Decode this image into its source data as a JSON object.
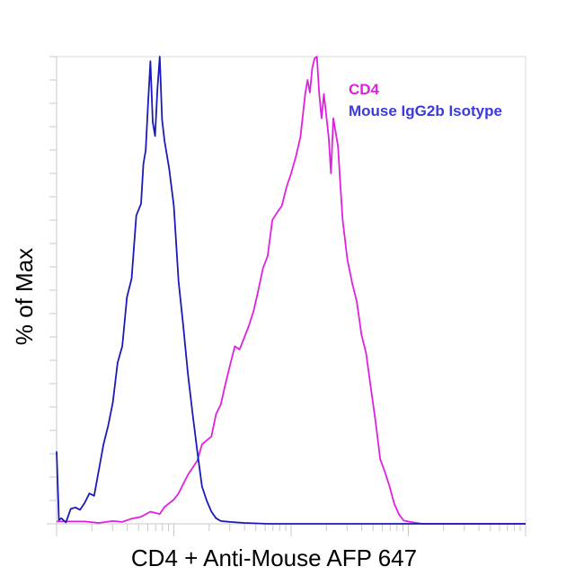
{
  "chart_data": {
    "type": "line",
    "xlabel": "CD4 + Anti-Mouse AFP 647",
    "ylabel": "% of Max",
    "ylim": [
      0,
      100
    ],
    "xscale": "log",
    "grid": false,
    "legend_position": "top-right",
    "series": [
      {
        "name": "CD4",
        "color": "#e020e0",
        "points": [
          [
            0.0,
            0.5
          ],
          [
            0.06,
            0.5
          ],
          [
            0.09,
            0.2
          ],
          [
            0.12,
            0.6
          ],
          [
            0.14,
            0.4
          ],
          [
            0.16,
            1.1
          ],
          [
            0.18,
            1.5
          ],
          [
            0.2,
            2.6
          ],
          [
            0.22,
            2.1
          ],
          [
            0.23,
            3.6
          ],
          [
            0.25,
            5.2
          ],
          [
            0.26,
            6.5
          ],
          [
            0.28,
            10.5
          ],
          [
            0.3,
            13.5
          ],
          [
            0.31,
            17.0
          ],
          [
            0.33,
            18.7
          ],
          [
            0.34,
            23.5
          ],
          [
            0.35,
            25.5
          ],
          [
            0.36,
            29.9
          ],
          [
            0.37,
            34.0
          ],
          [
            0.38,
            38.0
          ],
          [
            0.39,
            37.3
          ],
          [
            0.4,
            39.8
          ],
          [
            0.41,
            42.4
          ],
          [
            0.42,
            45.5
          ],
          [
            0.43,
            50.0
          ],
          [
            0.44,
            54.7
          ],
          [
            0.45,
            57.3
          ],
          [
            0.46,
            65.0
          ],
          [
            0.47,
            66.6
          ],
          [
            0.48,
            68.0
          ],
          [
            0.49,
            72.0
          ],
          [
            0.5,
            75.0
          ],
          [
            0.51,
            78.5
          ],
          [
            0.52,
            82.8
          ],
          [
            0.53,
            92.0
          ],
          [
            0.535,
            95.0
          ],
          [
            0.54,
            92.3
          ],
          [
            0.545,
            97.5
          ],
          [
            0.55,
            99.6
          ],
          [
            0.555,
            100.0
          ],
          [
            0.56,
            92.0
          ],
          [
            0.565,
            86.8
          ],
          [
            0.57,
            92.0
          ],
          [
            0.58,
            82.8
          ],
          [
            0.585,
            75.0
          ],
          [
            0.59,
            86.8
          ],
          [
            0.6,
            80.8
          ],
          [
            0.605,
            72.6
          ],
          [
            0.61,
            65.0
          ],
          [
            0.62,
            56.6
          ],
          [
            0.63,
            51.6
          ],
          [
            0.64,
            47.6
          ],
          [
            0.65,
            40.5
          ],
          [
            0.66,
            36.5
          ],
          [
            0.67,
            29.2
          ],
          [
            0.68,
            21.9
          ],
          [
            0.69,
            13.8
          ],
          [
            0.7,
            11.1
          ],
          [
            0.71,
            8.0
          ],
          [
            0.72,
            4.3
          ],
          [
            0.73,
            2.0
          ],
          [
            0.74,
            0.7
          ],
          [
            0.76,
            0.3
          ],
          [
            0.78,
            0.0
          ],
          [
            1.0,
            0.0
          ]
        ]
      },
      {
        "name": "Mouse IgG2b Isotype",
        "color": "#1a1ab8",
        "points": [
          [
            0.0,
            15.5
          ],
          [
            0.005,
            0.8
          ],
          [
            0.01,
            1.2
          ],
          [
            0.02,
            0.3
          ],
          [
            0.03,
            3.2
          ],
          [
            0.04,
            3.5
          ],
          [
            0.05,
            3.0
          ],
          [
            0.06,
            4.5
          ],
          [
            0.07,
            6.5
          ],
          [
            0.08,
            6.0
          ],
          [
            0.09,
            11.5
          ],
          [
            0.1,
            17.0
          ],
          [
            0.11,
            21.0
          ],
          [
            0.12,
            26.0
          ],
          [
            0.13,
            34.5
          ],
          [
            0.14,
            38.0
          ],
          [
            0.15,
            48.5
          ],
          [
            0.16,
            52.5
          ],
          [
            0.17,
            66.0
          ],
          [
            0.18,
            68.5
          ],
          [
            0.185,
            77.0
          ],
          [
            0.19,
            80.0
          ],
          [
            0.195,
            90.0
          ],
          [
            0.2,
            99.0
          ],
          [
            0.205,
            86.0
          ],
          [
            0.21,
            83.0
          ],
          [
            0.215,
            93.0
          ],
          [
            0.22,
            100.0
          ],
          [
            0.225,
            86.5
          ],
          [
            0.23,
            82.0
          ],
          [
            0.24,
            76.0
          ],
          [
            0.25,
            68.0
          ],
          [
            0.26,
            52.0
          ],
          [
            0.27,
            42.5
          ],
          [
            0.28,
            32.0
          ],
          [
            0.29,
            23.5
          ],
          [
            0.3,
            15.5
          ],
          [
            0.31,
            8.0
          ],
          [
            0.32,
            5.0
          ],
          [
            0.33,
            2.6
          ],
          [
            0.34,
            1.2
          ],
          [
            0.35,
            0.6
          ],
          [
            0.37,
            0.4
          ],
          [
            0.4,
            0.2
          ],
          [
            0.45,
            0.0
          ],
          [
            1.0,
            0.0
          ]
        ]
      }
    ]
  }
}
